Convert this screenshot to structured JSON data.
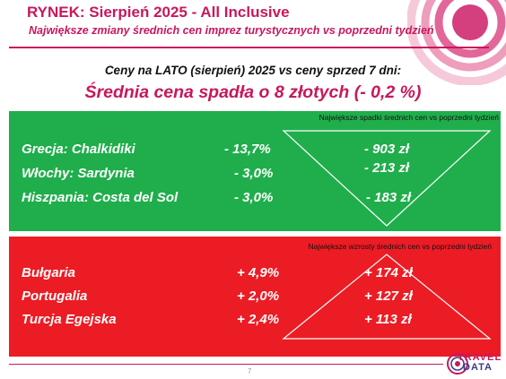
{
  "header": {
    "title": "RYNEK: Sierpień 2025 - All Inclusive",
    "subtitle": "Największe zmiany średnich cen imprez turystycznych vs poprzedni tydzień"
  },
  "summary": {
    "line1": "Ceny na LATO (sierpień) 2025 vs ceny sprzed 7 dni:",
    "headline": "Średnia cena spadła o 8 złotych (- 0,2 %)"
  },
  "decreases": {
    "caption": "Największe spadki średnich cen vs poprzedni tydzień",
    "rows": [
      {
        "country": "Grecja: Chalkidiki",
        "pct": "- 13,7%",
        "pln": "- 903 zł"
      },
      {
        "country": "Włochy: Sardynia",
        "pct": "- 3,0%",
        "pln": "- 213 zł"
      },
      {
        "country": "Hiszpania: Costa del Sol",
        "pct": "- 3,0%",
        "pln": "- 183 zł"
      }
    ]
  },
  "increases": {
    "caption": "Największe wzrosty średnich cen vs poprzedni tydzień",
    "rows": [
      {
        "country": "Bułgaria",
        "pct": "+ 4,9%",
        "pln": "+ 174 zł"
      },
      {
        "country": "Portugalia",
        "pct": "+ 2,0%",
        "pln": "+ 127 zł"
      },
      {
        "country": "Turcja Egejska",
        "pct": "+ 2,4%",
        "pln": "+ 113 zł"
      }
    ]
  },
  "footer": {
    "page_number": "7",
    "logo_top": "TRAVEL",
    "logo_bottom": "DATA"
  },
  "colors": {
    "accent": "#c8185c",
    "green_panel": "#1fae4b",
    "red_panel": "#ec1c24"
  }
}
